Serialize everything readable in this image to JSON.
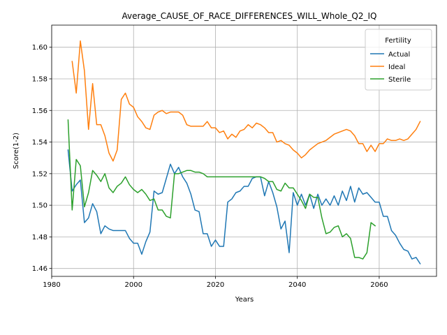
{
  "chart_data": {
    "type": "line",
    "title": "Average_CAUSE_OF_RACE_DIFFERENCES_WILL_Whole_Q2_IQ",
    "xlabel": "Years",
    "ylabel": "Score(1-2)",
    "xlim": [
      1980,
      2074
    ],
    "ylim": [
      1.455,
      1.614
    ],
    "xticks": [
      1980,
      2000,
      2020,
      2040,
      2060
    ],
    "yticks": [
      1.46,
      1.48,
      1.5,
      1.52,
      1.54,
      1.56,
      1.58,
      1.6
    ],
    "ytick_labels": [
      "1.46",
      "1.48",
      "1.50",
      "1.52",
      "1.54",
      "1.56",
      "1.58",
      "1.60"
    ],
    "grid": true,
    "legend": {
      "title": "Fertility",
      "position": "top-right"
    },
    "series": [
      {
        "name": "Actual",
        "color": "#1f77b4",
        "x": [
          1984,
          1985,
          1986,
          1987,
          1988,
          1989,
          1990,
          1991,
          1992,
          1993,
          1994,
          1995,
          1996,
          1997,
          1998,
          1999,
          2000,
          2001,
          2002,
          2003,
          2004,
          2005,
          2006,
          2007,
          2008,
          2009,
          2010,
          2011,
          2012,
          2013,
          2014,
          2015,
          2016,
          2017,
          2018,
          2019,
          2020,
          2021,
          2022,
          2023,
          2024,
          2025,
          2026,
          2027,
          2028,
          2029,
          2030,
          2031,
          2032,
          2033,
          2034,
          2035,
          2036,
          2037,
          2038,
          2039,
          2040,
          2041,
          2042,
          2043,
          2044,
          2045,
          2046,
          2047,
          2048,
          2049,
          2050,
          2051,
          2052,
          2053,
          2054,
          2055,
          2056,
          2057,
          2058,
          2059,
          2060,
          2061,
          2062,
          2063,
          2064,
          2065,
          2066,
          2067,
          2068,
          2069,
          2070
        ],
        "values": [
          1.535,
          1.509,
          1.513,
          1.516,
          1.489,
          1.492,
          1.501,
          1.496,
          1.482,
          1.487,
          1.485,
          1.484,
          1.484,
          1.484,
          1.484,
          1.479,
          1.476,
          1.476,
          1.469,
          1.477,
          1.483,
          1.509,
          1.507,
          1.508,
          1.517,
          1.526,
          1.52,
          1.524,
          1.518,
          1.514,
          1.507,
          1.497,
          1.496,
          1.482,
          1.482,
          1.474,
          1.478,
          1.474,
          1.474,
          1.502,
          1.504,
          1.508,
          1.509,
          1.512,
          1.512,
          1.517,
          1.518,
          1.518,
          1.506,
          1.515,
          1.508,
          1.499,
          1.485,
          1.49,
          1.47,
          1.508,
          1.5,
          1.507,
          1.5,
          1.507,
          1.498,
          1.507,
          1.5,
          1.504,
          1.5,
          1.506,
          1.5,
          1.509,
          1.503,
          1.512,
          1.502,
          1.511,
          1.507,
          1.508,
          1.505,
          1.502,
          1.502,
          1.493,
          1.493,
          1.484,
          1.481,
          1.476,
          1.472,
          1.471,
          1.466,
          1.467,
          1.463
        ]
      },
      {
        "name": "Ideal",
        "color": "#ff7f0e",
        "x": [
          1985,
          1986,
          1987,
          1988,
          1989,
          1990,
          1991,
          1992,
          1993,
          1994,
          1995,
          1996,
          1997,
          1998,
          1999,
          2000,
          2001,
          2002,
          2003,
          2004,
          2005,
          2006,
          2007,
          2008,
          2009,
          2010,
          2011,
          2012,
          2013,
          2014,
          2015,
          2016,
          2017,
          2018,
          2019,
          2020,
          2021,
          2022,
          2023,
          2024,
          2025,
          2026,
          2027,
          2028,
          2029,
          2030,
          2031,
          2032,
          2033,
          2034,
          2035,
          2036,
          2037,
          2038,
          2039,
          2040,
          2041,
          2042,
          2043,
          2044,
          2045,
          2046,
          2047,
          2048,
          2049,
          2050,
          2051,
          2052,
          2053,
          2054,
          2055,
          2056,
          2057,
          2058,
          2059,
          2060,
          2061,
          2062,
          2063,
          2064,
          2065,
          2066,
          2067,
          2068,
          2069,
          2070
        ],
        "values": [
          1.591,
          1.571,
          1.604,
          1.585,
          1.548,
          1.577,
          1.551,
          1.551,
          1.544,
          1.533,
          1.528,
          1.535,
          1.567,
          1.571,
          1.564,
          1.562,
          1.556,
          1.553,
          1.549,
          1.548,
          1.557,
          1.559,
          1.56,
          1.558,
          1.559,
          1.559,
          1.559,
          1.557,
          1.551,
          1.55,
          1.55,
          1.55,
          1.55,
          1.553,
          1.549,
          1.549,
          1.546,
          1.547,
          1.542,
          1.545,
          1.543,
          1.547,
          1.548,
          1.551,
          1.549,
          1.552,
          1.551,
          1.549,
          1.546,
          1.546,
          1.54,
          1.541,
          1.539,
          1.538,
          1.535,
          1.533,
          1.53,
          1.532,
          1.535,
          1.537,
          1.539,
          1.54,
          1.541,
          1.543,
          1.545,
          1.546,
          1.547,
          1.548,
          1.547,
          1.544,
          1.539,
          1.539,
          1.534,
          1.538,
          1.534,
          1.539,
          1.539,
          1.542,
          1.541,
          1.541,
          1.542,
          1.541,
          1.542,
          1.545,
          1.548,
          1.553
        ]
      },
      {
        "name": "Sterile",
        "color": "#2ca02c",
        "x": [
          1984,
          1985,
          1986,
          1987,
          1988,
          1989,
          1990,
          1991,
          1992,
          1993,
          1994,
          1995,
          1996,
          1997,
          1998,
          1999,
          2000,
          2001,
          2002,
          2003,
          2004,
          2005,
          2006,
          2007,
          2008,
          2009,
          2010,
          2011,
          2012,
          2013,
          2014,
          2015,
          2016,
          2017,
          2018,
          2019,
          2020,
          2021,
          2022,
          2023,
          2024,
          2025,
          2026,
          2027,
          2028,
          2029,
          2030,
          2031,
          2032,
          2033,
          2034,
          2035,
          2036,
          2037,
          2038,
          2039,
          2040,
          2041,
          2042,
          2043,
          2044,
          2045,
          2046,
          2047,
          2048,
          2049,
          2050,
          2051,
          2052,
          2053,
          2054,
          2055,
          2056,
          2057,
          2058,
          2059
        ],
        "values": [
          1.554,
          1.497,
          1.529,
          1.525,
          1.499,
          1.508,
          1.522,
          1.519,
          1.515,
          1.52,
          1.511,
          1.508,
          1.512,
          1.514,
          1.518,
          1.513,
          1.51,
          1.508,
          1.51,
          1.507,
          1.503,
          1.504,
          1.497,
          1.497,
          1.493,
          1.492,
          1.52,
          1.52,
          1.521,
          1.522,
          1.522,
          1.521,
          1.521,
          1.52,
          1.518,
          1.518,
          1.518,
          1.518,
          1.518,
          1.518,
          1.518,
          1.518,
          1.518,
          1.518,
          1.518,
          1.518,
          1.518,
          1.518,
          1.517,
          1.515,
          1.515,
          1.51,
          1.509,
          1.514,
          1.511,
          1.511,
          1.507,
          1.503,
          1.498,
          1.507,
          1.505,
          1.505,
          1.492,
          1.482,
          1.483,
          1.486,
          1.487,
          1.48,
          1.482,
          1.479,
          1.467,
          1.467,
          1.466,
          1.47,
          1.489,
          1.487
        ]
      }
    ]
  }
}
